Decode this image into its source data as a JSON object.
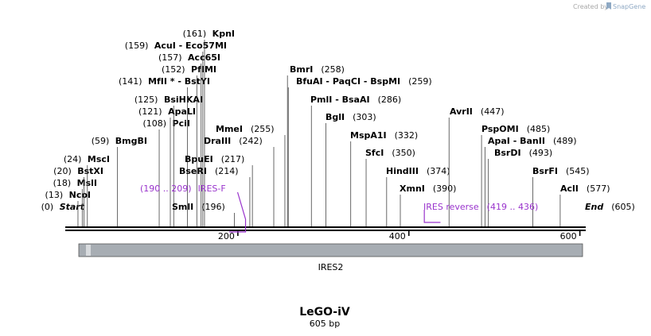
{
  "header": {
    "credit_prefix": "Created by",
    "credit_brand": "SnapGene"
  },
  "map": {
    "name": "LeGO-iV",
    "size_label": "605 bp",
    "length": 605,
    "feature": {
      "name": "IRES2",
      "start": 0,
      "end": 605,
      "color": "#a7adb3"
    },
    "ruler": [
      {
        "pos": 200,
        "label": "200"
      },
      {
        "pos": 400,
        "label": "400"
      },
      {
        "pos": 600,
        "label": "600"
      }
    ],
    "primers": [
      {
        "name": "IRES-F",
        "range": "(190 .. 209)",
        "start": 190,
        "end": 209,
        "strand": "forward"
      },
      {
        "name": "IRES reverse",
        "range": "(419 .. 436)",
        "start": 419,
        "end": 436,
        "strand": "reverse"
      }
    ],
    "sites": [
      {
        "pos": 0,
        "num": "(0)",
        "name": "Start",
        "italic": true
      },
      {
        "pos": 13,
        "num": "(13)",
        "name": "NcoI"
      },
      {
        "pos": 18,
        "num": "(18)",
        "name": "MslI"
      },
      {
        "pos": 20,
        "num": "(20)",
        "name": "BstXI"
      },
      {
        "pos": 24,
        "num": "(24)",
        "name": "MscI"
      },
      {
        "pos": 59,
        "num": "(59)",
        "name": "BmgBI"
      },
      {
        "pos": 108,
        "num": "(108)",
        "name": "PciI"
      },
      {
        "pos": 121,
        "num": "(121)",
        "name": "ApaLI"
      },
      {
        "pos": 125,
        "num": "(125)",
        "name": "BsiHKAI"
      },
      {
        "pos": 141,
        "num": "(141)",
        "name": "MfII * - BstYI"
      },
      {
        "pos": 152,
        "num": "(152)",
        "name": "PfIMI"
      },
      {
        "pos": 157,
        "num": "(157)",
        "name": "Acc65I"
      },
      {
        "pos": 159,
        "num": "(159)",
        "name": "AcuI - Eco57MI"
      },
      {
        "pos": 161,
        "num": "(161)",
        "name": "KpnI"
      },
      {
        "pos": 196,
        "num": "(196)",
        "name": "SmlI"
      },
      {
        "pos": 214,
        "num": "(214)",
        "name": "BseRI"
      },
      {
        "pos": 217,
        "num": "(217)",
        "name": "BpuEI"
      },
      {
        "pos": 242,
        "num": "(242)",
        "name": "DraIII"
      },
      {
        "pos": 255,
        "num": "(255)",
        "name": "MmeI"
      },
      {
        "pos": 258,
        "num": "(258)",
        "name": "BmrI"
      },
      {
        "pos": 259,
        "num": "(259)",
        "name": "BfuAI - PaqCI - BspMI"
      },
      {
        "pos": 286,
        "num": "(286)",
        "name": "PmlI - BsaAI"
      },
      {
        "pos": 303,
        "num": "(303)",
        "name": "BglI"
      },
      {
        "pos": 332,
        "num": "(332)",
        "name": "MspA1I"
      },
      {
        "pos": 350,
        "num": "(350)",
        "name": "SfcI"
      },
      {
        "pos": 374,
        "num": "(374)",
        "name": "HindIII"
      },
      {
        "pos": 390,
        "num": "(390)",
        "name": "XmnI"
      },
      {
        "pos": 447,
        "num": "(447)",
        "name": "AvrII"
      },
      {
        "pos": 485,
        "num": "(485)",
        "name": "PspOMI"
      },
      {
        "pos": 489,
        "num": "(489)",
        "name": "ApaI - BanII"
      },
      {
        "pos": 493,
        "num": "(493)",
        "name": "BsrDI"
      },
      {
        "pos": 545,
        "num": "(545)",
        "name": "BsrFI"
      },
      {
        "pos": 577,
        "num": "(577)",
        "name": "AclI"
      },
      {
        "pos": 605,
        "num": "(605)",
        "name": "End",
        "italic": true
      }
    ]
  }
}
